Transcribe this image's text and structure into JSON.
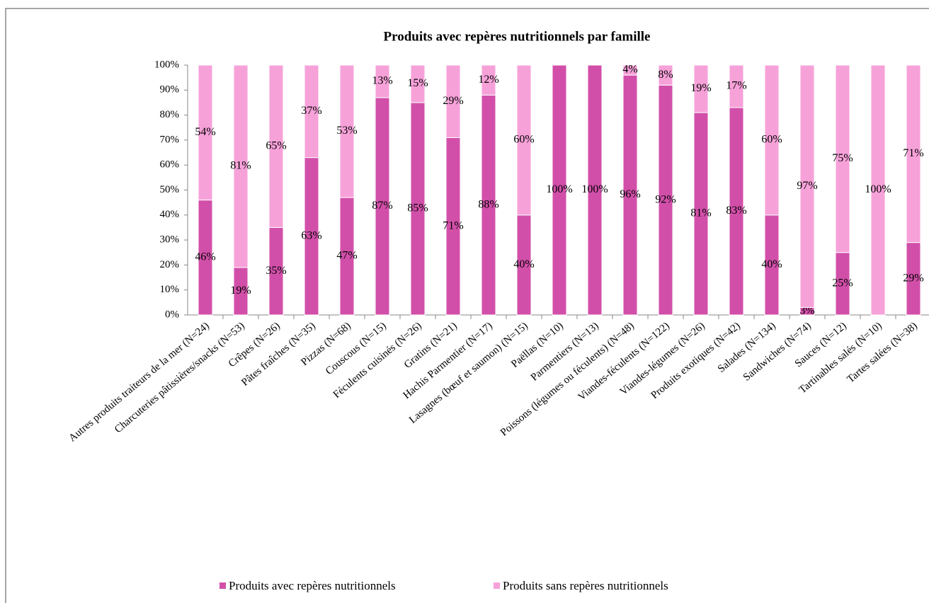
{
  "chart_data": {
    "type": "stacked-bar",
    "title": "Produits avec repères nutritionnels par famille",
    "categories": [
      "Autres produits traiteurs de la mer (N=24)",
      "Charcuteries pâtissières/snacks (N=53)",
      "Crêpes (N=26)",
      "Pâtes fraîches (N=35)",
      "Pizzas (N=68)",
      "Couscous (N=15)",
      "Féculents cuisinés (N=26)",
      "Gratins (N=21)",
      "Hachis Parmentier (N=17)",
      "Lasagnes (bœuf et saumon) (N=15)",
      "Paëllas (N=10)",
      "Parmentiers (N=13)",
      "Poissons (légumes ou féculents) (N=48)",
      "Viandes-féculents (N=122)",
      "Viandes-légumes (N=26)",
      "Produits exotiques (N=42)",
      "Salades (N=134)",
      "Sandwiches (N=74)",
      "Sauces (N=12)",
      "Tartinables salés (N=10)",
      "Tartes salées (N=38)"
    ],
    "series": [
      {
        "name": "Produits avec repères nutritionnels",
        "color": "#d24fa9",
        "values": [
          46,
          19,
          35,
          63,
          47,
          87,
          85,
          71,
          88,
          40,
          100,
          100,
          96,
          92,
          81,
          83,
          40,
          3,
          25,
          0,
          29
        ],
        "value_labels": [
          "46%",
          "19%",
          "35%",
          "63%",
          "47%",
          "87%",
          "85%",
          "71%",
          "88%",
          "40%",
          "100%",
          "100%",
          "96%",
          "92%",
          "81%",
          "83%",
          "40%",
          "3%",
          "25%",
          null,
          "29%"
        ]
      },
      {
        "name": "Produits sans repères nutritionnels",
        "color": "#f7a1d9",
        "values": [
          54,
          81,
          65,
          37,
          53,
          13,
          15,
          29,
          12,
          60,
          0,
          0,
          4,
          8,
          19,
          17,
          60,
          97,
          75,
          100,
          71
        ],
        "value_labels": [
          "54%",
          "81%",
          "65%",
          "37%",
          "53%",
          "13%",
          "15%",
          "29%",
          "12%",
          "60%",
          null,
          null,
          "4%",
          "8%",
          "19%",
          "17%",
          "60%",
          "97%",
          "75%",
          "100%",
          "71%"
        ]
      }
    ],
    "ylim": [
      0,
      100
    ],
    "yticks": [
      {
        "value": 0,
        "label": "0%"
      },
      {
        "value": 10,
        "label": "10%"
      },
      {
        "value": 20,
        "label": "20%"
      },
      {
        "value": 30,
        "label": "30%"
      },
      {
        "value": 40,
        "label": "40%"
      },
      {
        "value": 50,
        "label": "50%"
      },
      {
        "value": 60,
        "label": "60%"
      },
      {
        "value": 70,
        "label": "70%"
      },
      {
        "value": 80,
        "label": "80%"
      },
      {
        "value": 90,
        "label": "90%"
      },
      {
        "value": 100,
        "label": "100%"
      }
    ],
    "legend": "bottom"
  }
}
